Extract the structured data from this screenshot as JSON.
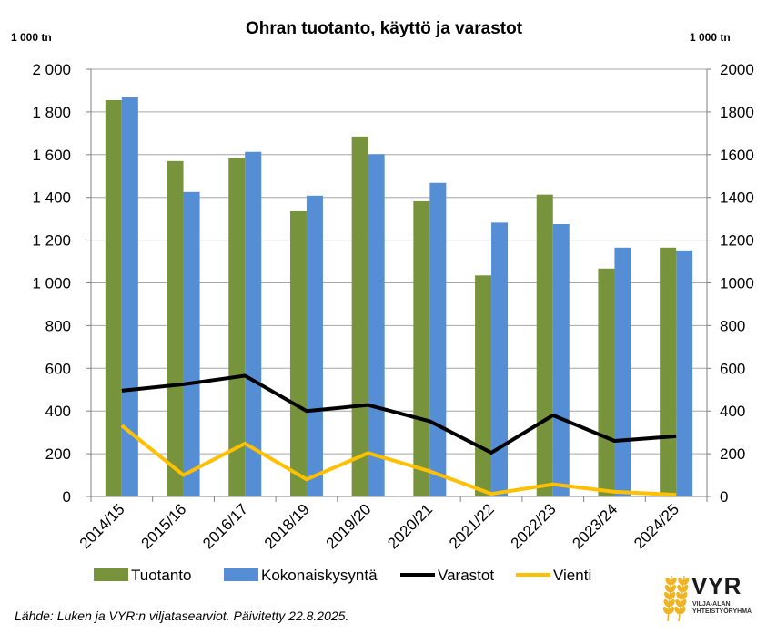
{
  "chart_data": {
    "type": "bar",
    "title": "Ohran tuotanto, käyttö ja varastot",
    "y_unit_left": "1 000 tn",
    "y_unit_right": "1 000 tn",
    "ylim": [
      0,
      2000
    ],
    "y_ticks_left": [
      "0",
      "200",
      "400",
      "600",
      "800",
      "1 000",
      "1 200",
      "1 400",
      "1 600",
      "1 800",
      "2 000"
    ],
    "y_ticks_right": [
      "0",
      "200",
      "400",
      "600",
      "800",
      "1000",
      "1200",
      "1400",
      "1600",
      "1800",
      "2000"
    ],
    "y_tick_values": [
      0,
      200,
      400,
      600,
      800,
      1000,
      1200,
      1400,
      1600,
      1800,
      2000
    ],
    "categories": [
      "2014/15",
      "2015/16",
      "2016/17",
      "2018/19",
      "2019/20",
      "2020/21",
      "2021/22",
      "2022/23",
      "2023/24",
      "2024/25"
    ],
    "grid": true,
    "legend_position": "bottom",
    "series": [
      {
        "name": "Tuotanto",
        "kind": "bar",
        "color": "#77933c",
        "values": [
          1855,
          1570,
          1583,
          1335,
          1685,
          1382,
          1035,
          1413,
          1067,
          1165
        ]
      },
      {
        "name": "Kokonaiskysyntä",
        "kind": "bar",
        "color": "#558ed5",
        "values": [
          1868,
          1425,
          1613,
          1408,
          1602,
          1468,
          1282,
          1275,
          1165,
          1152
        ]
      },
      {
        "name": "Varastot",
        "kind": "line",
        "color": "#000000",
        "values": [
          495,
          525,
          565,
          400,
          428,
          352,
          205,
          380,
          260,
          282
        ]
      },
      {
        "name": "Vienti",
        "kind": "line",
        "color": "#ffc000",
        "values": [
          332,
          100,
          248,
          80,
          203,
          118,
          12,
          57,
          22,
          8
        ]
      }
    ]
  },
  "footer": {
    "source": "Lähde: Luken ja VYR:n viljatasearviot. Päivitetty 22.8.2025."
  },
  "logo": {
    "name": "VYR",
    "subtitle_line1": "VILJA-ALAN",
    "subtitle_line2": "YHTEISTYÖRYHMÄ",
    "color": "#f0b323"
  }
}
